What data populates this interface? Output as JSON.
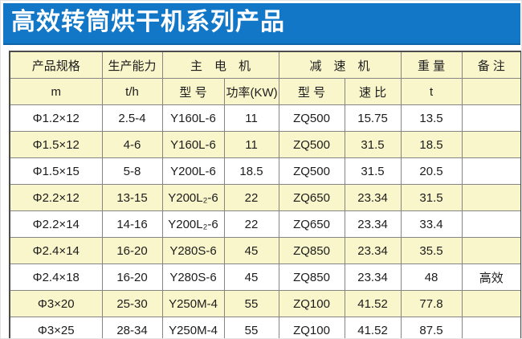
{
  "title": "高效转筒烘干机系列产品",
  "colors": {
    "banner_blue": "#1277c6",
    "banner_text": "#ffffff",
    "header_cream": "#faf6cc",
    "row_highlight": "#faf6cc",
    "border_gray": "#858585"
  },
  "table": {
    "headers": {
      "spec": "产品规格",
      "capacity": "生产能力",
      "motor_group": "主　电　机",
      "reducer_group": "减　速　机",
      "weight": "重 量",
      "remark": "备 注",
      "spec_unit": "m",
      "capacity_unit": "t/h",
      "motor_model": "型 号",
      "motor_power": "功率(KW)",
      "reducer_model": "型 号",
      "speed_ratio": "速 比",
      "weight_unit": "t",
      "remark_unit": ""
    },
    "col_keys": [
      "spec",
      "capacity",
      "motor-model",
      "motor-power",
      "reducer-model",
      "speed-ratio",
      "weight",
      "remark"
    ],
    "rows": [
      [
        "Φ1.2×12",
        "2.5-4",
        "Y160L-6",
        "11",
        "ZQ500",
        "15.75",
        "13.5",
        ""
      ],
      [
        "Φ1.5×12",
        "4-6",
        "Y160L-6",
        "11",
        "ZQ500",
        "31.5",
        "18.5",
        ""
      ],
      [
        "Φ1.5×15",
        "5-8",
        "Y200L-6",
        "18.5",
        "ZQ500",
        "31.5",
        "20.5",
        ""
      ],
      [
        "Φ2.2×12",
        "13-15",
        "Y200L₂-6",
        "22",
        "ZQ650",
        "23.34",
        "31.5",
        ""
      ],
      [
        "Φ2.2×14",
        "14-16",
        "Y200L₂-6",
        "22",
        "ZQ650",
        "23.34",
        "33.4",
        ""
      ],
      [
        "Φ2.4×14",
        "16-20",
        "Y280S-6",
        "45",
        "ZQ850",
        "23.34",
        "35.5",
        ""
      ],
      [
        "Φ2.4×18",
        "16-20",
        "Y280S-6",
        "45",
        "ZQ850",
        "23.34",
        "48",
        "高效"
      ],
      [
        "Φ3×20",
        "25-30",
        "Y250M-4",
        "55",
        "ZQ100",
        "41.52",
        "77.8",
        ""
      ],
      [
        "Φ3×25",
        "28-34",
        "Y250M-4",
        "55",
        "ZQ100",
        "41.52",
        "87.5",
        ""
      ]
    ]
  }
}
